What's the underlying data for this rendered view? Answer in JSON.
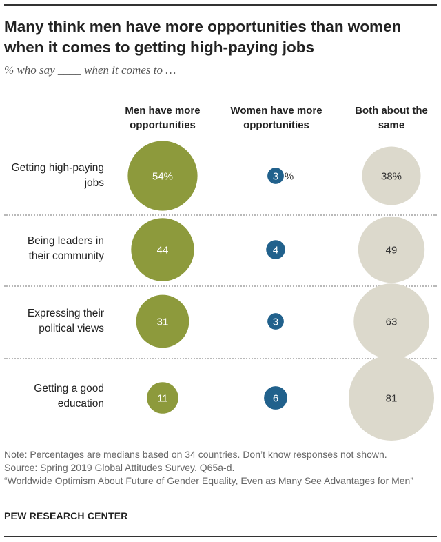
{
  "header": {
    "title": "Many think men have more opportunities than women when it comes to getting high-paying jobs",
    "subtitle": "% who say ____ when it comes to …"
  },
  "columns": [
    "Men have more opportunities",
    "Women have more opportunities",
    "Both about the same"
  ],
  "footer": {
    "note": "Note: Percentages are medians based on 34 countries. Don’t know responses not shown.",
    "source": "Source: Spring 2019 Global Attitudes Survey. Q65a-d.",
    "report": "“Worldwide Optimism About Future of Gender Equality, Even as Many See Advantages for Men”",
    "org": "PEW RESEARCH CENTER"
  },
  "colors": {
    "men": "#8d9a3c",
    "women": "#21618c",
    "same": "#dcd9cc"
  },
  "chart_data": {
    "type": "bubble",
    "categories": [
      "Getting high-paying jobs",
      "Being leaders in their community",
      "Expressing their political views",
      "Getting a good education"
    ],
    "series": [
      {
        "name": "Men have more opportunities",
        "values": [
          54,
          44,
          31,
          11
        ],
        "labels": [
          "54%",
          "44",
          "31",
          "11"
        ]
      },
      {
        "name": "Women have more opportunities",
        "values": [
          3,
          4,
          3,
          6
        ],
        "labels": [
          "3%",
          "4",
          "3",
          "6"
        ]
      },
      {
        "name": "Both about the same",
        "values": [
          38,
          49,
          63,
          81
        ],
        "labels": [
          "38%",
          "49",
          "63",
          "81"
        ]
      }
    ]
  }
}
